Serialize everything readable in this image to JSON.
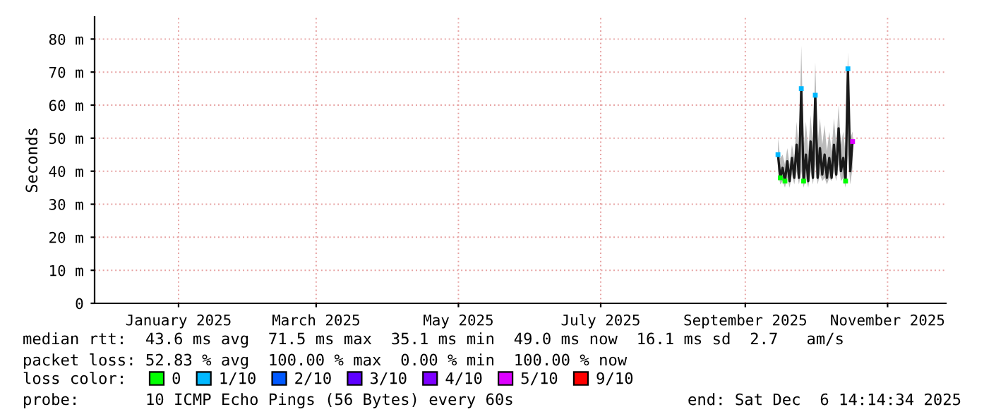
{
  "chart_data": {
    "type": "line",
    "ylabel": "Seconds",
    "legend_title": "loss color:",
    "legend": "bottom",
    "grid": true,
    "xlim": [
      "2024-11-26",
      "2025-11-26"
    ],
    "xticks": [
      {
        "value": "2025-01-01",
        "label": "January 2025"
      },
      {
        "value": "2025-03-01",
        "label": "March 2025"
      },
      {
        "value": "2025-05-01",
        "label": "May 2025"
      },
      {
        "value": "2025-07-01",
        "label": "July 2025"
      },
      {
        "value": "2025-09-01",
        "label": "September 2025"
      },
      {
        "value": "2025-11-01",
        "label": "November 2025"
      }
    ],
    "ylim": [
      0,
      86.7
    ],
    "yticks": [
      0,
      {
        "value": 10,
        "label": "10 m"
      },
      {
        "value": 20,
        "label": "20 m"
      },
      {
        "value": 30,
        "label": "30 m"
      },
      {
        "value": 40,
        "label": "40 m"
      },
      {
        "value": 50,
        "label": "50 m"
      },
      {
        "value": 60,
        "label": "60 m"
      },
      {
        "value": 70,
        "label": "70 m"
      },
      {
        "value": 80,
        "label": "80 m"
      }
    ],
    "series": [
      {
        "color": "#1a1a1a",
        "x": [
          "2025-09-15",
          "2025-09-16",
          "2025-09-17",
          "2025-09-18",
          "2025-09-19",
          "2025-09-20",
          "2025-09-21",
          "2025-09-22",
          "2025-09-23",
          "2025-09-24",
          "2025-09-25",
          "2025-09-26",
          "2025-09-27",
          "2025-09-28",
          "2025-09-29",
          "2025-09-30",
          "2025-10-01",
          "2025-10-02",
          "2025-10-03",
          "2025-10-04",
          "2025-10-05",
          "2025-10-06",
          "2025-10-07",
          "2025-10-08",
          "2025-10-09",
          "2025-10-10",
          "2025-10-11",
          "2025-10-12",
          "2025-10-13",
          "2025-10-14",
          "2025-10-15",
          "2025-10-16",
          "2025-10-17"
        ],
        "values": [
          45,
          38,
          41,
          37,
          43,
          37,
          44,
          38,
          48,
          38,
          65,
          37,
          45,
          37,
          49,
          38,
          63,
          38,
          47,
          39,
          45,
          38,
          44,
          38,
          48,
          39,
          53,
          40,
          44,
          37,
          71,
          40,
          49
        ],
        "lower": [
          40,
          36,
          37,
          35,
          38,
          35,
          39,
          36,
          40,
          36,
          40,
          35,
          38,
          35,
          40,
          36,
          42,
          36,
          39,
          37,
          38,
          36,
          38,
          37,
          40,
          37,
          42,
          37,
          38,
          35,
          45,
          36,
          41
        ],
        "upper": [
          50,
          44,
          45,
          42,
          47,
          42,
          48,
          44,
          55,
          45,
          78,
          47,
          55,
          46,
          57,
          47,
          73,
          48,
          56,
          48,
          54,
          46,
          52,
          46,
          56,
          48,
          60,
          48,
          52,
          45,
          76,
          50,
          52
        ]
      },
      {
        "type": "scatter",
        "name": "0",
        "color": "#00ff00",
        "marker": "square",
        "x": [
          "2025-09-16",
          "2025-09-18",
          "2025-09-26",
          "2025-10-14"
        ],
        "values": [
          38,
          37,
          37,
          37
        ]
      },
      {
        "type": "scatter",
        "name": "1/10",
        "color": "#00b8ff",
        "marker": "square",
        "x": [
          "2025-09-15",
          "2025-09-25",
          "2025-10-01",
          "2025-10-15"
        ],
        "values": [
          45,
          65,
          63,
          71
        ]
      },
      {
        "type": "scatter",
        "name": "2/10",
        "color": "#0059ff",
        "marker": "square"
      },
      {
        "type": "scatter",
        "name": "3/10",
        "color": "#5e00ff",
        "marker": "square"
      },
      {
        "type": "scatter",
        "name": "4/10",
        "color": "#7e00ff",
        "marker": "square"
      },
      {
        "type": "scatter",
        "name": "5/10",
        "color": "#dd00ff",
        "marker": "square",
        "x": [
          "2025-10-17"
        ],
        "values": [
          49
        ]
      },
      {
        "type": "scatter",
        "name": "9/10",
        "color": "#ff0000",
        "marker": "square"
      }
    ],
    "annotations": [
      "median rtt:  43.6 ms avg  71.5 ms max  35.1 ms min  49.0 ms now  16.1 ms sd  2.7   am/s",
      "packet loss: 52.83 % avg  100.00 % max  0.00 % min  100.00 % now",
      "probe:       10 ICMP Echo Pings (56 Bytes) every 60s",
      "end: Sat Dec  6 14:14:34 2025"
    ]
  }
}
